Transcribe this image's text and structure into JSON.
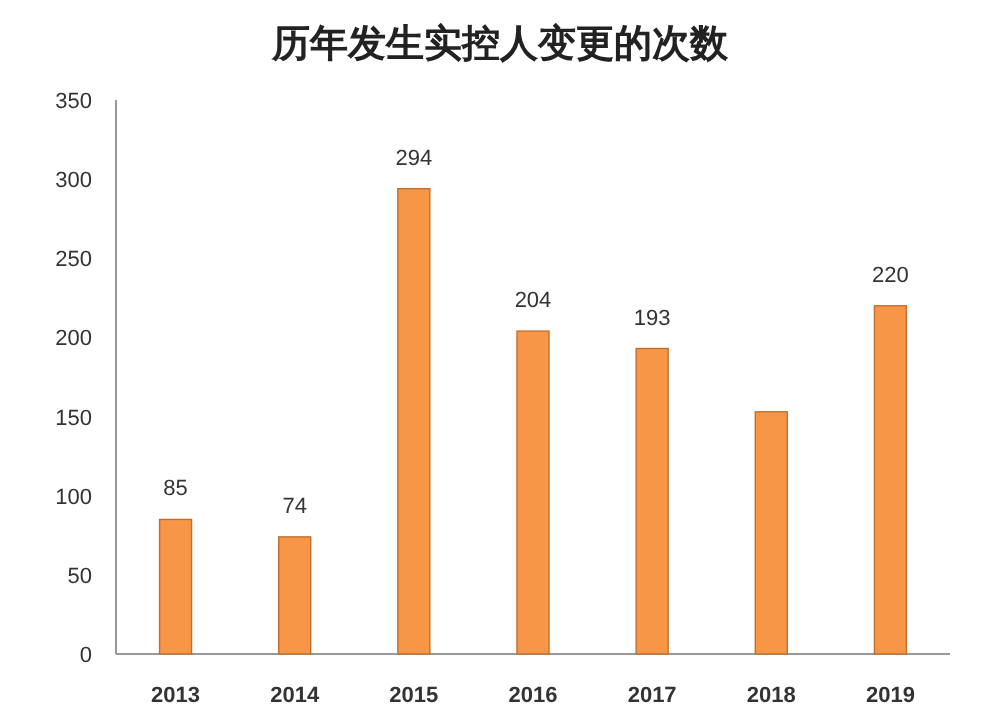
{
  "chart_data": {
    "type": "bar",
    "title": "历年发生实控人变更的次数",
    "categories": [
      "2013",
      "2014",
      "2015",
      "2016",
      "2017",
      "2018",
      "2019"
    ],
    "values": [
      85,
      74,
      294,
      204,
      193,
      153,
      220
    ],
    "value_labels": [
      "85",
      "74",
      "294",
      "204",
      "193",
      null,
      "220"
    ],
    "color": "#f79646",
    "ylim": [
      0,
      350
    ],
    "yticks": [
      0,
      50,
      100,
      150,
      200,
      250,
      300,
      350
    ],
    "grid": false
  }
}
